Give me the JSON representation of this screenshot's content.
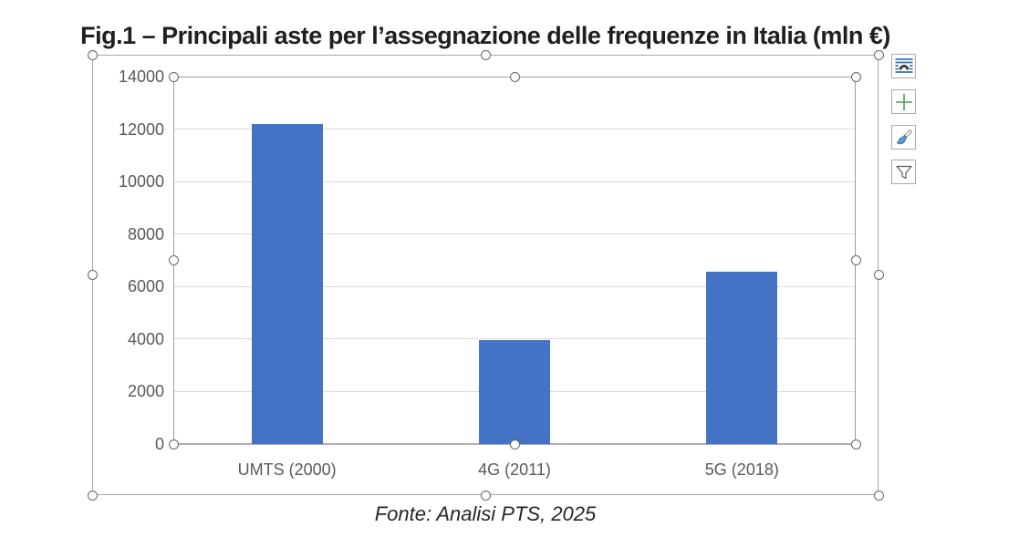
{
  "figure": {
    "title": "Fig.1 – Principali aste per l’assegnazione delle frequenze in Italia (mln €)",
    "source_note": "Fonte: Analisi PTS, 2025"
  },
  "chart_data": {
    "type": "bar",
    "title": "Fig.1 – Principali aste per l’assegnazione delle frequenze in Italia (mln €)",
    "categories": [
      "UMTS (2000)",
      "4G (2011)",
      "5G (2018)"
    ],
    "values": [
      12200,
      3950,
      6550
    ],
    "unit": "mln €",
    "xlabel": "",
    "ylabel": "",
    "ylim": [
      0,
      14000
    ],
    "yticks": [
      0,
      2000,
      4000,
      6000,
      8000,
      10000,
      12000,
      14000
    ],
    "grid": true,
    "legend": "none",
    "bar_color": "#4472C4",
    "source": "Fonte: Analisi PTS, 2025"
  },
  "selection": {
    "state": "chart-selected",
    "outer_handle_count": 8,
    "plot_handle_count": 8
  },
  "chart_tools": {
    "buttons": [
      {
        "id": "layout-options",
        "icon": "layout-options-icon"
      },
      {
        "id": "chart-elements",
        "icon": "plus-icon"
      },
      {
        "id": "chart-styles",
        "icon": "paintbrush-icon"
      },
      {
        "id": "chart-filters",
        "icon": "funnel-icon"
      }
    ]
  },
  "colors": {
    "bar": "#4472C4",
    "gridline": "#D9D9D9",
    "axis_line": "#AEAEAE",
    "selection_frame": "#A8A8A8",
    "tick_label": "#595959",
    "icon_blue": "#2E74B5",
    "icon_green": "#4E9D50",
    "brush_blue": "#5B9BD5"
  }
}
